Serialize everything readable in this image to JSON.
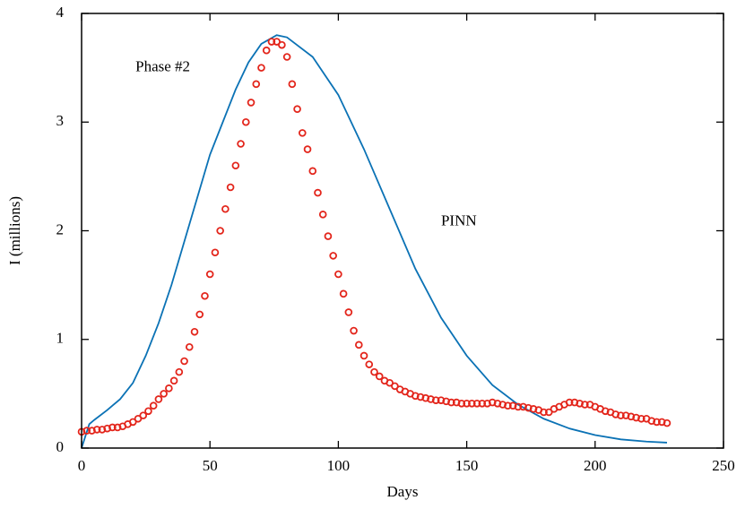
{
  "chart_data": {
    "type": "line",
    "xlabel": "Days",
    "ylabel": "I (millions)",
    "annotations": [
      {
        "text": "Phase #2",
        "x": 21,
        "y": 3.5
      },
      {
        "text": "PINN",
        "x": 140,
        "y": 2.08
      }
    ],
    "xlim": [
      0,
      250
    ],
    "xticks": [
      0,
      50,
      100,
      150,
      200,
      250
    ],
    "ylim": [
      0,
      4
    ],
    "yticks": [
      0,
      1,
      2,
      3,
      4
    ],
    "series": [
      {
        "type": "line",
        "color": "#0b72b5",
        "x": [
          0,
          3,
          5,
          10,
          15,
          20,
          25,
          30,
          35,
          40,
          45,
          50,
          55,
          60,
          65,
          70,
          76,
          80,
          90,
          100,
          110,
          120,
          130,
          140,
          150,
          160,
          170,
          180,
          190,
          200,
          210,
          220,
          228
        ],
        "values": [
          0,
          0.22,
          0.26,
          0.35,
          0.45,
          0.6,
          0.85,
          1.15,
          1.5,
          1.9,
          2.3,
          2.7,
          3.0,
          3.3,
          3.55,
          3.72,
          3.8,
          3.78,
          3.6,
          3.25,
          2.75,
          2.2,
          1.65,
          1.2,
          0.85,
          0.58,
          0.4,
          0.27,
          0.18,
          0.12,
          0.08,
          0.06,
          0.05
        ]
      },
      {
        "type": "scatter",
        "color": "#e3251b",
        "x": [
          0,
          2,
          4,
          6,
          8,
          10,
          12,
          14,
          16,
          18,
          20,
          22,
          24,
          26,
          28,
          30,
          32,
          34,
          36,
          38,
          40,
          42,
          44,
          46,
          48,
          50,
          52,
          54,
          56,
          58,
          60,
          62,
          64,
          66,
          68,
          70,
          72,
          74,
          76,
          78,
          80,
          82,
          84,
          86,
          88,
          90,
          92,
          94,
          96,
          98,
          100,
          102,
          104,
          106,
          108,
          110,
          112,
          114,
          116,
          118,
          120,
          122,
          124,
          126,
          128,
          130,
          132,
          134,
          136,
          138,
          140,
          142,
          144,
          146,
          148,
          150,
          152,
          154,
          156,
          158,
          160,
          162,
          164,
          166,
          168,
          170,
          172,
          174,
          176,
          178,
          180,
          182,
          184,
          186,
          188,
          190,
          192,
          194,
          196,
          198,
          200,
          202,
          204,
          206,
          208,
          210,
          212,
          214,
          216,
          218,
          220,
          222,
          224,
          226,
          228
        ],
        "values": [
          0.15,
          0.16,
          0.16,
          0.17,
          0.17,
          0.18,
          0.19,
          0.19,
          0.2,
          0.22,
          0.24,
          0.27,
          0.3,
          0.34,
          0.39,
          0.45,
          0.5,
          0.55,
          0.62,
          0.7,
          0.8,
          0.93,
          1.07,
          1.23,
          1.4,
          1.6,
          1.8,
          2.0,
          2.2,
          2.4,
          2.6,
          2.8,
          3.0,
          3.18,
          3.35,
          3.5,
          3.66,
          3.74,
          3.74,
          3.71,
          3.6,
          3.35,
          3.12,
          2.9,
          2.75,
          2.55,
          2.35,
          2.15,
          1.95,
          1.77,
          1.6,
          1.42,
          1.25,
          1.08,
          0.95,
          0.85,
          0.77,
          0.7,
          0.66,
          0.62,
          0.6,
          0.57,
          0.54,
          0.52,
          0.5,
          0.48,
          0.47,
          0.46,
          0.45,
          0.44,
          0.44,
          0.43,
          0.42,
          0.42,
          0.41,
          0.41,
          0.41,
          0.41,
          0.41,
          0.41,
          0.42,
          0.41,
          0.4,
          0.39,
          0.39,
          0.38,
          0.38,
          0.37,
          0.36,
          0.35,
          0.33,
          0.33,
          0.36,
          0.38,
          0.4,
          0.42,
          0.42,
          0.41,
          0.4,
          0.4,
          0.38,
          0.36,
          0.34,
          0.33,
          0.31,
          0.3,
          0.3,
          0.29,
          0.28,
          0.27,
          0.27,
          0.25,
          0.24,
          0.24,
          0.23
        ]
      }
    ]
  }
}
